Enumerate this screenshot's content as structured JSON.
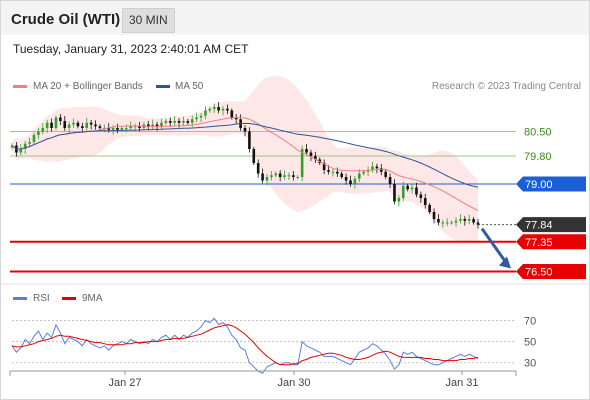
{
  "header": {
    "title": "Crude Oil (WTI)",
    "timeframe": "30 MIN"
  },
  "datetime": "Tuesday, January 31, 2023 2:40:01 AM CET",
  "legend": {
    "ma20": "MA 20 + Bollinger Bands",
    "ma50": "MA 50",
    "rsi": "RSI",
    "rsi_ma": "9MA"
  },
  "copyright": "Research © 2023 Trading Central",
  "colors": {
    "ma20": "#f08080",
    "ma50": "#2f5597",
    "bollinger_fill": "#fde3e3",
    "resistance": "#9bc97f",
    "pivot": "#1a5fd6",
    "support": "#e60000",
    "last": "#333333",
    "candle_up": "#33a02c",
    "candle_down": "#111111",
    "rsi_line": "#5b7fd6",
    "rsi_ma": "#e60000",
    "arrow": "#2f5c9e"
  },
  "chart_data": [
    {
      "type": "candlestick",
      "title": "Crude Oil (WTI) 30 MIN",
      "x_tick_labels": [
        "Jan 27",
        "Jan 30",
        "Jan 31"
      ],
      "ylim": [
        76.2,
        81.4
      ],
      "series_names": [
        "MA 20 + Bollinger Bands",
        "MA 50"
      ],
      "close": [
        80.1,
        79.9,
        80.0,
        80.15,
        80.2,
        80.4,
        80.5,
        80.6,
        80.75,
        80.6,
        80.9,
        80.8,
        80.6,
        80.7,
        80.75,
        80.65,
        80.6,
        80.75,
        80.7,
        80.65,
        80.6,
        80.6,
        80.55,
        80.6,
        80.55,
        80.6,
        80.6,
        80.65,
        80.65,
        80.6,
        80.7,
        80.65,
        80.7,
        80.65,
        80.75,
        80.8,
        80.75,
        80.8,
        80.75,
        80.8,
        80.75,
        80.85,
        80.9,
        80.95,
        81.1,
        81.15,
        81.2,
        81.1,
        81.15,
        81.1,
        80.9,
        80.85,
        80.6,
        80.5,
        80.0,
        79.6,
        79.3,
        79.1,
        79.2,
        79.25,
        79.3,
        79.2,
        79.25,
        79.25,
        79.2,
        79.2,
        80.0,
        79.9,
        79.8,
        79.7,
        79.6,
        79.4,
        79.35,
        79.35,
        79.3,
        79.2,
        79.1,
        79.0,
        79.15,
        79.3,
        79.35,
        79.4,
        79.5,
        79.45,
        79.35,
        79.2,
        79.0,
        78.5,
        78.6,
        78.95,
        78.85,
        78.9,
        78.7,
        78.6,
        78.4,
        78.2,
        78.0,
        77.9,
        77.9,
        77.9,
        77.9,
        77.95,
        78.0,
        77.95,
        78.0,
        77.9,
        77.84
      ],
      "ma20_last": 78.4,
      "ma50_last": 79.05,
      "levels": {
        "resistance": [
          80.5,
          79.8
        ],
        "pivot": 79.0,
        "last": 77.84,
        "support": [
          77.35,
          76.5
        ]
      },
      "forecast_arrow": {
        "from": 77.84,
        "to": 76.5
      }
    },
    {
      "type": "line",
      "title": "RSI",
      "ylim": [
        0,
        100
      ],
      "y_ticks": [
        30,
        50,
        70
      ],
      "series_names": [
        "RSI",
        "9MA"
      ],
      "rsi": [
        46,
        40,
        44,
        52,
        48,
        55,
        60,
        52,
        58,
        54,
        66,
        58,
        48,
        54,
        52,
        50,
        46,
        52,
        48,
        46,
        44,
        46,
        42,
        46,
        48,
        50,
        48,
        52,
        50,
        48,
        50,
        48,
        52,
        50,
        54,
        56,
        52,
        56,
        52,
        56,
        54,
        58,
        60,
        64,
        70,
        68,
        72,
        66,
        68,
        64,
        56,
        52,
        44,
        42,
        30,
        26,
        22,
        20,
        26,
        28,
        30,
        28,
        30,
        30,
        28,
        28,
        50,
        46,
        44,
        42,
        40,
        36,
        36,
        36,
        34,
        32,
        30,
        28,
        34,
        40,
        42,
        44,
        48,
        46,
        42,
        38,
        32,
        24,
        28,
        40,
        38,
        40,
        36,
        34,
        32,
        30,
        28,
        28,
        30,
        32,
        34,
        36,
        38,
        36,
        38,
        36,
        34
      ],
      "rsi_ma": [
        46,
        45,
        45,
        46,
        47,
        48,
        50,
        51,
        52,
        53,
        55,
        56,
        55,
        55,
        54,
        53,
        52,
        51,
        50,
        49,
        49,
        48,
        47,
        47,
        47,
        47,
        48,
        48,
        49,
        49,
        49,
        50,
        50,
        50,
        51,
        52,
        52,
        53,
        53,
        53,
        54,
        55,
        56,
        57,
        59,
        61,
        63,
        64,
        65,
        66,
        65,
        63,
        60,
        57,
        53,
        49,
        44,
        40,
        36,
        33,
        30,
        28,
        28,
        28,
        29,
        29,
        32,
        33,
        35,
        36,
        37,
        38,
        39,
        39,
        38,
        37,
        35,
        34,
        33,
        33,
        34,
        35,
        37,
        39,
        40,
        41,
        40,
        38,
        36,
        35,
        35,
        35,
        35,
        35,
        34,
        34,
        33,
        33,
        32,
        32,
        32,
        32,
        33,
        33,
        34,
        34,
        35
      ]
    }
  ]
}
